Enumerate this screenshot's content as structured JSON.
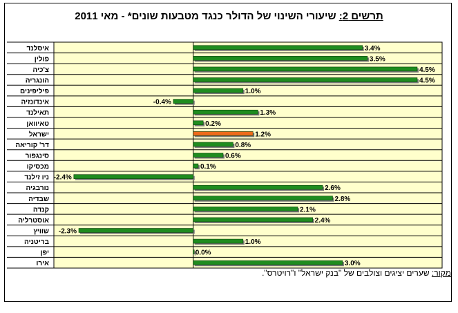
{
  "title": {
    "prefix": "תרשים 2:",
    "text": "שיעורי השינוי של הדולר כנגד מטבעות שונים* - מאי 2011"
  },
  "source": {
    "label": "מקור:",
    "text": "שערים יציגים וצולבים של \"בנק ישראל\" ו\"רויטרס\"."
  },
  "colors": {
    "bar": "#1f8c1f",
    "highlight": "#ee6a1a",
    "plot_bg": "#ffffcc",
    "axis": "#000000"
  },
  "chart_data": {
    "type": "bar",
    "orientation": "horizontal",
    "categories": [
      "איסלנד",
      "פולין",
      "צ'כיה",
      "הונגריה",
      "פיליפינים",
      "אינדונזיה",
      "תאילנד",
      "טאיוואן",
      "ישראל",
      "דר' קוריאה",
      "סינגפור",
      "מכסיקו",
      "ניו זילנד",
      "נורבגיה",
      "שבדיה",
      "קנדה",
      "אוסטרליה",
      "שוויץ",
      "בריטניה",
      "יפן",
      "אירו"
    ],
    "values": [
      3.4,
      3.5,
      4.5,
      4.5,
      1.0,
      -0.4,
      1.3,
      0.2,
      1.2,
      0.8,
      0.6,
      0.1,
      -2.4,
      2.6,
      2.8,
      2.1,
      2.4,
      -2.3,
      1.0,
      0.0,
      3.0
    ],
    "labels": [
      "3.4%",
      "3.5%",
      "4.5%",
      "4.5%",
      "1.0%",
      "-0.4%",
      "1.3%",
      "0.2%",
      "1.2%",
      "0.8%",
      "0.6%",
      "0.1%",
      "-2.4%",
      "2.6%",
      "2.8%",
      "2.1%",
      "2.4%",
      "-2.3%",
      "1.0%",
      "0.0%",
      "3.0%"
    ],
    "highlight_category": "ישראל",
    "xlim": [
      -2.8,
      5.0
    ],
    "grid": "horizontal",
    "legend": "none",
    "xlabel": "",
    "ylabel": ""
  }
}
